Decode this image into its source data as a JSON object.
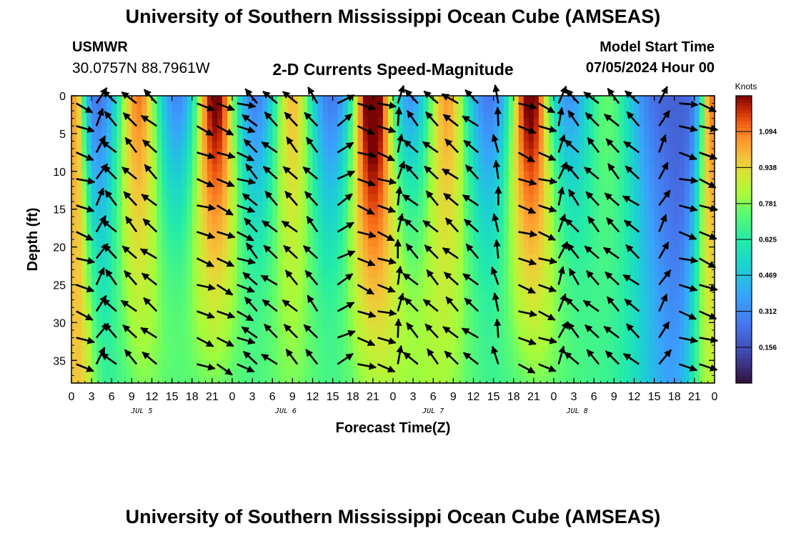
{
  "header": {
    "title": "University of Southern Mississippi Ocean Cube (AMSEAS)",
    "station": "USMWR",
    "coordinates": "30.0757N  88.7961W",
    "subtitle": "2-D Currents Speed-Magnitude",
    "model_start_label": "Model Start Time",
    "model_start_value": "07/05/2024 Hour 00"
  },
  "footer": {
    "title": "University of Southern Mississippi Ocean Cube (AMSEAS)"
  },
  "chart_data": {
    "type": "heatmap",
    "title": "2-D Currents Speed-Magnitude",
    "xlabel": "Forecast Time(Z)",
    "ylabel": "Depth (ft)",
    "x_unit": "hours from 07/05/2024 00Z",
    "xlim": [
      0,
      96
    ],
    "ylim": [
      0,
      38
    ],
    "x_tick_values": [
      0,
      3,
      6,
      9,
      12,
      15,
      18,
      21,
      24,
      27,
      30,
      33,
      36,
      39,
      42,
      45,
      48,
      51,
      54,
      57,
      60,
      63,
      66,
      69,
      72,
      75,
      78,
      81,
      84,
      87,
      90,
      93,
      96
    ],
    "x_tick_labels": [
      "0",
      "3",
      "6",
      "9",
      "12",
      "15",
      "18",
      "21",
      "0",
      "3",
      "6",
      "9",
      "12",
      "15",
      "18",
      "21",
      "0",
      "3",
      "6",
      "9",
      "12",
      "15",
      "18",
      "21",
      "0",
      "3",
      "6",
      "9",
      "12",
      "15",
      "18",
      "21",
      "0"
    ],
    "date_labels": [
      {
        "label": "JUL 5",
        "hour": 10.5
      },
      {
        "label": "JUL 6",
        "hour": 32
      },
      {
        "label": "JUL 7",
        "hour": 54
      },
      {
        "label": "JUL 8",
        "hour": 75.5
      }
    ],
    "y_tick_values": [
      0,
      5,
      10,
      15,
      20,
      25,
      30,
      35
    ],
    "y_tick_labels": [
      "0",
      "5",
      "10",
      "15",
      "20",
      "25",
      "30",
      "35"
    ],
    "colorbar": {
      "label": "Knots",
      "range": [
        0,
        1.25
      ],
      "ticks": [
        0.156,
        0.312,
        0.469,
        0.625,
        0.781,
        0.938,
        1.094
      ],
      "tick_labels": [
        "0.156",
        "0.312",
        "0.469",
        "0.625",
        "0.781",
        "0.938",
        "1.094"
      ]
    },
    "speed_peaks": [
      {
        "hour": 0.5,
        "speed": 0.85,
        "width": 1.2,
        "depth_falloff": 0.2
      },
      {
        "hour": 10,
        "speed": 0.9,
        "width": 2.4,
        "depth_falloff": 0.4
      },
      {
        "hour": 21.5,
        "speed": 1.1,
        "width": 2.3,
        "depth_falloff": 0.55
      },
      {
        "hour": 33,
        "speed": 0.8,
        "width": 2.3,
        "depth_falloff": 0.35
      },
      {
        "hour": 45,
        "speed": 1.2,
        "width": 2.3,
        "depth_falloff": 0.55
      },
      {
        "hour": 56,
        "speed": 0.85,
        "width": 2.5,
        "depth_falloff": 0.35
      },
      {
        "hour": 68.5,
        "speed": 1.12,
        "width": 2.3,
        "depth_falloff": 0.6
      },
      {
        "hour": 80,
        "speed": 0.55,
        "width": 3.0,
        "depth_falloff": 0.2
      },
      {
        "hour": 95.5,
        "speed": 0.9,
        "width": 1.2,
        "depth_falloff": 0.3
      }
    ],
    "base_speed": 0.2,
    "current_vectors": {
      "hours": [
        2,
        5,
        8,
        11,
        14,
        20,
        23,
        26,
        29,
        32,
        35,
        38,
        41,
        44,
        47,
        50,
        53,
        56,
        59,
        62,
        65,
        68,
        71,
        74,
        77,
        80,
        83,
        86,
        89,
        92,
        95
      ],
      "depths_ft": [
        1,
        4,
        7.5,
        11,
        14.5,
        18,
        21.5,
        25,
        28.5,
        32,
        35.5
      ],
      "direction_by_column_deg": [
        -20,
        60,
        135,
        135,
        140,
        -20,
        -25,
        -20,
        135,
        140,
        135,
        130,
        30,
        -20,
        -18,
        80,
        135,
        135,
        140,
        140,
        100,
        -20,
        -20,
        70,
        130,
        135,
        135,
        140,
        60,
        -15,
        -20
      ]
    }
  }
}
